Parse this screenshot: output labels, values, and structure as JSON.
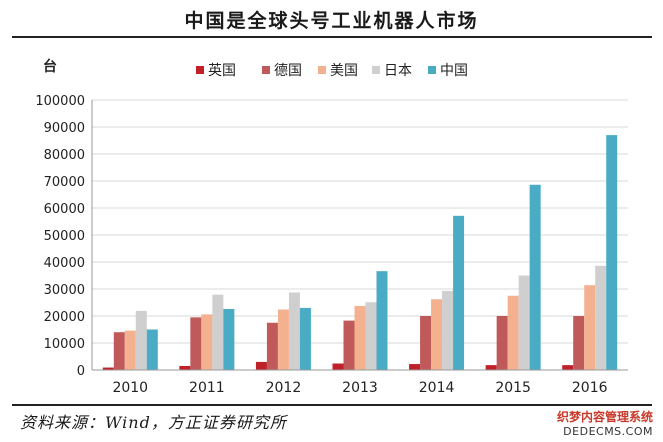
{
  "title": "中国是全球头号工业机器人市场",
  "source": "资料来源：Wind，方正证券研究所",
  "watermark": {
    "line1": "织梦内容管理系统",
    "line2": "DEDECMS.COM"
  },
  "chart_data": {
    "type": "bar",
    "ylabel": "台",
    "ylim": [
      0,
      100000
    ],
    "yticks": [
      0,
      10000,
      20000,
      30000,
      40000,
      50000,
      60000,
      70000,
      80000,
      90000,
      100000
    ],
    "ytick_labels": [
      "0",
      "10000",
      "20000",
      "30000",
      "40000",
      "50000",
      "60000",
      "70000",
      "80000",
      "90000",
      "100000"
    ],
    "categories": [
      "2010",
      "2011",
      "2012",
      "2013",
      "2014",
      "2015",
      "2016"
    ],
    "grid": true,
    "legend_position": "top",
    "series": [
      {
        "name": "英国",
        "color": "#c0202a",
        "values": [
          900,
          1500,
          3000,
          2400,
          2200,
          1800,
          1800
        ]
      },
      {
        "name": "德国",
        "color": "#c05a5a",
        "values": [
          14000,
          19500,
          17500,
          18300,
          20000,
          20000,
          20000
        ]
      },
      {
        "name": "美国",
        "color": "#f4b190",
        "values": [
          14600,
          20600,
          22400,
          23700,
          26200,
          27500,
          31400
        ]
      },
      {
        "name": "日本",
        "color": "#cfcfcf",
        "values": [
          21900,
          27900,
          28700,
          25100,
          29300,
          35000,
          38600
        ]
      },
      {
        "name": "中国",
        "color": "#4aabc4",
        "values": [
          15000,
          22600,
          23000,
          36600,
          57100,
          68600,
          87000
        ]
      }
    ]
  }
}
